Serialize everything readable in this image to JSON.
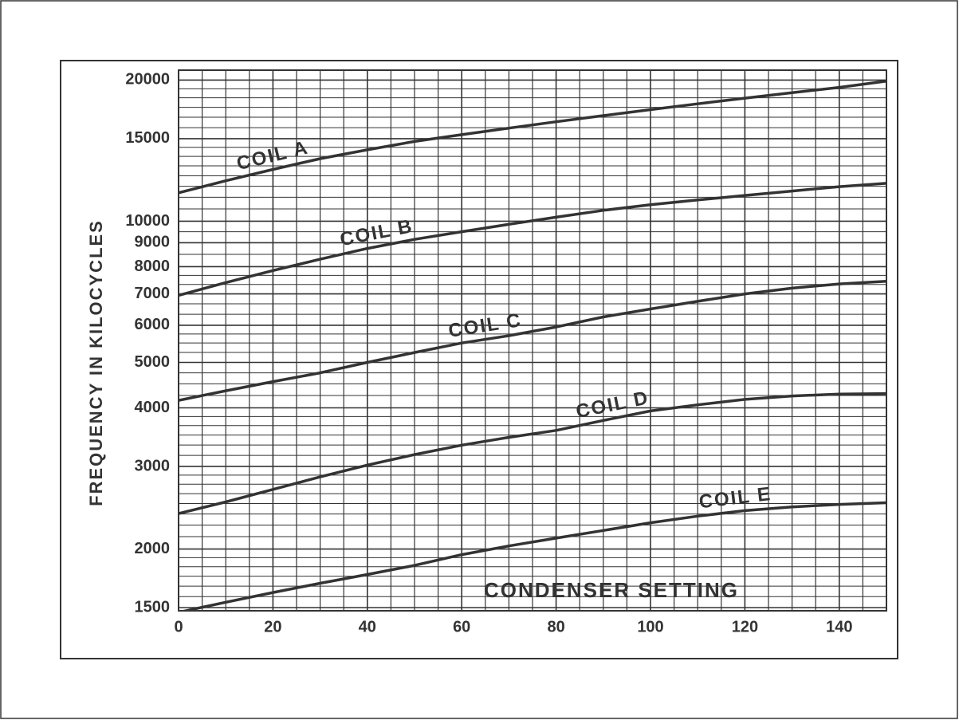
{
  "chart_data": {
    "type": "line",
    "y_label": "FREQUENCY IN KILOCYCLES",
    "x_label": "CONDENSER SETTING",
    "x": [
      0,
      10,
      20,
      30,
      40,
      50,
      60,
      70,
      80,
      90,
      100,
      110,
      120,
      130,
      140,
      150
    ],
    "series": [
      {
        "name": "COIL A",
        "color": "#333333",
        "values": [
          11500,
          12200,
          12900,
          13600,
          14200,
          14800,
          15300,
          15800,
          16300,
          16800,
          17300,
          17800,
          18300,
          18800,
          19300,
          19900
        ]
      },
      {
        "name": "COIL B",
        "color": "#333333",
        "values": [
          6950,
          7400,
          7850,
          8300,
          8750,
          9150,
          9500,
          9850,
          10200,
          10550,
          10850,
          11100,
          11350,
          11600,
          11850,
          12050
        ]
      },
      {
        "name": "COIL C",
        "color": "#333333",
        "values": [
          4150,
          4350,
          4550,
          4750,
          5000,
          5250,
          5500,
          5700,
          5950,
          6250,
          6500,
          6750,
          7000,
          7200,
          7350,
          7450
        ]
      },
      {
        "name": "COIL D",
        "color": "#333333",
        "values": [
          2380,
          2520,
          2680,
          2850,
          3020,
          3180,
          3330,
          3460,
          3580,
          3760,
          3940,
          4060,
          4170,
          4240,
          4280,
          4290
        ]
      },
      {
        "name": "COIL E",
        "color": "#333333",
        "values": [
          1465,
          1540,
          1615,
          1690,
          1765,
          1845,
          1945,
          2030,
          2110,
          2190,
          2275,
          2350,
          2415,
          2460,
          2490,
          2510
        ]
      }
    ],
    "xlim": [
      0,
      150
    ],
    "xticks": [
      0,
      20,
      40,
      60,
      80,
      100,
      120,
      140
    ],
    "ylim": [
      1500,
      21000
    ],
    "ylog": true,
    "yticks": [
      1500,
      2000,
      3000,
      4000,
      5000,
      6000,
      7000,
      8000,
      9000,
      10000,
      15000,
      20000
    ],
    "grid": true
  }
}
